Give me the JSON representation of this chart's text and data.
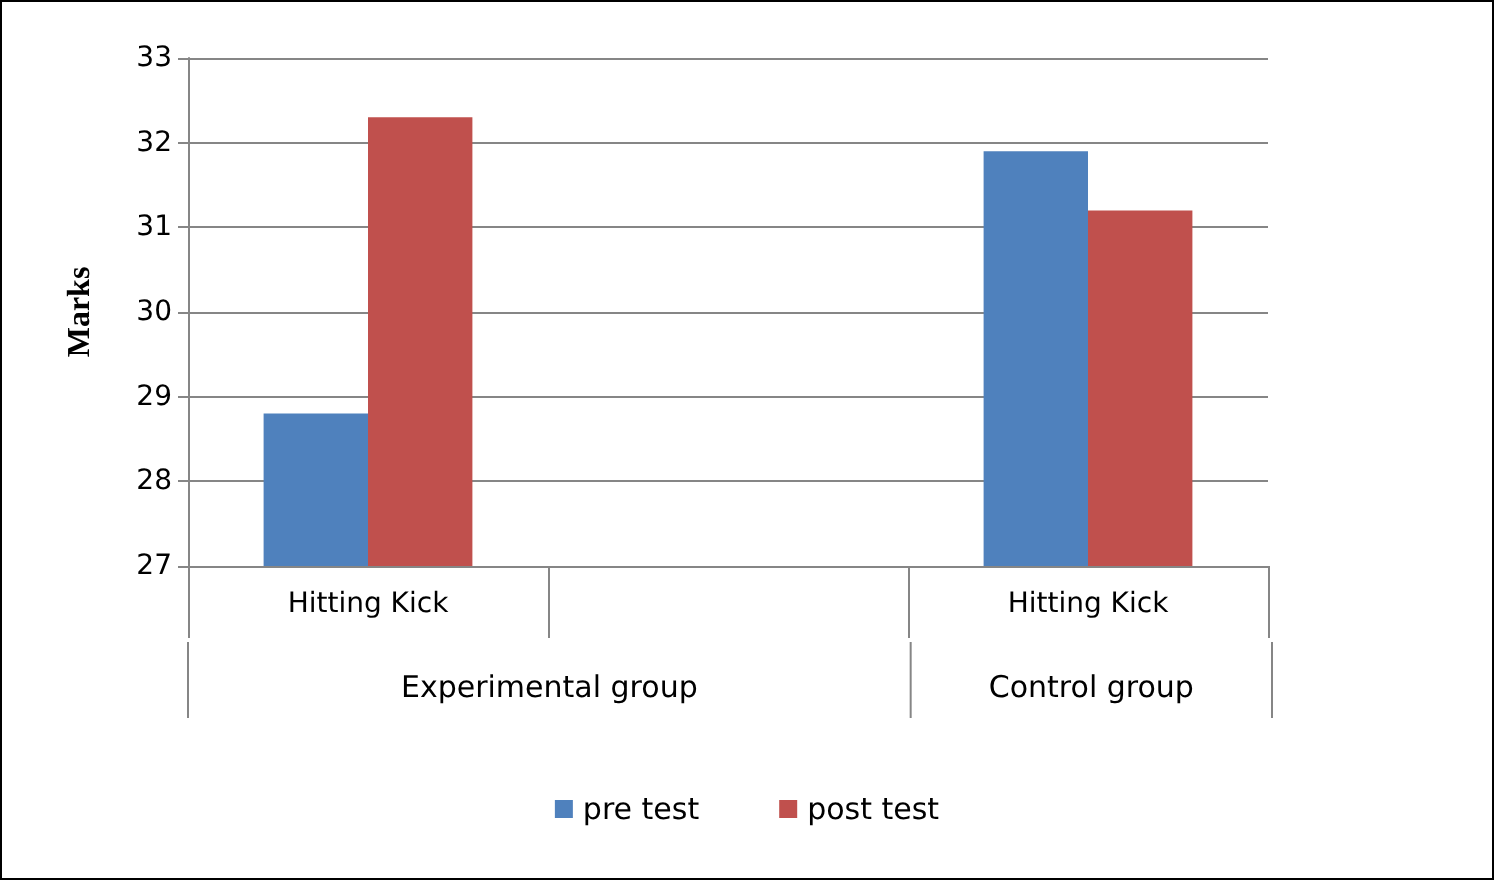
{
  "chart_data": {
    "type": "bar",
    "ylabel": "Marks",
    "categories": [
      "Hitting Kick",
      null,
      "Hitting Kick"
    ],
    "series": [
      {
        "name": "pre test",
        "color": "#4f81bd",
        "values": [
          28.8,
          null,
          31.9
        ]
      },
      {
        "name": "post test",
        "color": "#c0504d",
        "values": [
          32.3,
          null,
          31.2
        ]
      }
    ],
    "ylim": [
      27,
      33
    ],
    "yticks": [
      27,
      28,
      29,
      30,
      31,
      32,
      33
    ],
    "grid": "y",
    "legend": "bottom",
    "annotations": [
      "Experimental group",
      "Control group"
    ]
  }
}
